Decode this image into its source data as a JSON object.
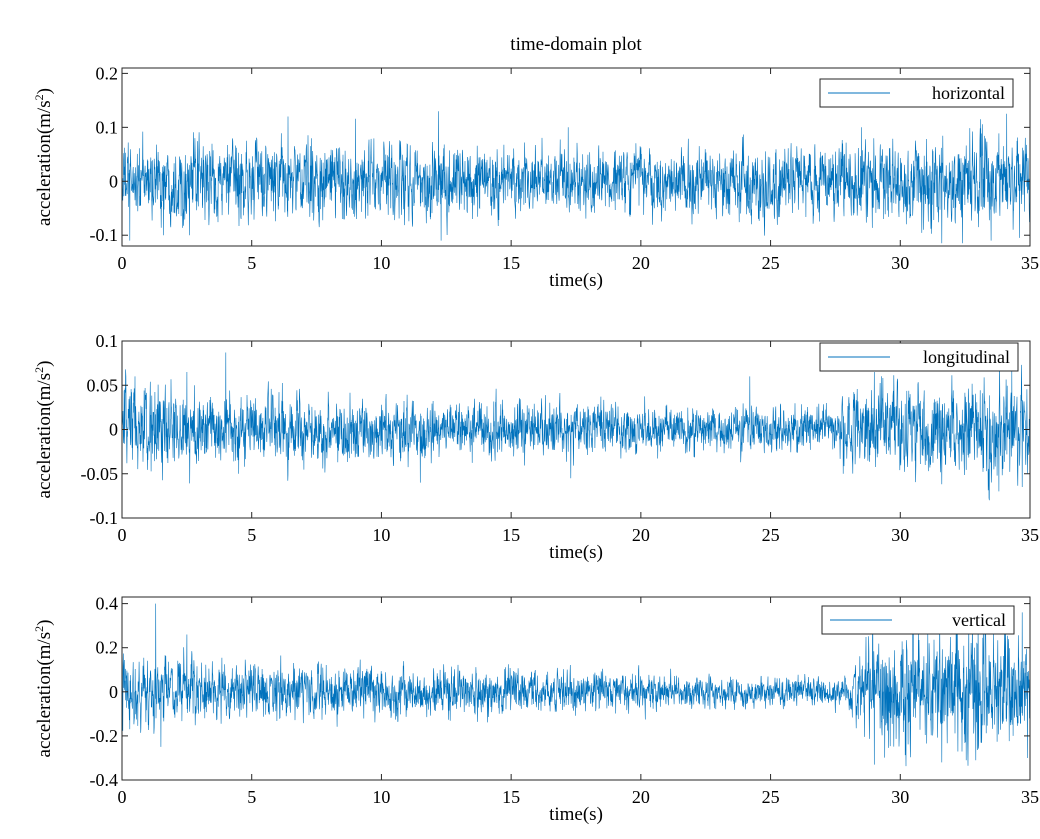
{
  "chart_data": {
    "title": "time-domain plot",
    "subplots": [
      {
        "type": "line",
        "xlabel": "time(s)",
        "ylabel": "acceleration(m/s",
        "ylabel_sup": "2",
        "ylabel_close": ")",
        "xlim": [
          0,
          35
        ],
        "ylim": [
          -0.12,
          0.21
        ],
        "xticks": [
          "0",
          "5",
          "10",
          "15",
          "20",
          "25",
          "30",
          "35"
        ],
        "yticks": [
          {
            "value": 0.2,
            "label": "0.2"
          },
          {
            "value": 0.1,
            "label": "0.1"
          },
          {
            "value": 0,
            "label": "0"
          },
          {
            "value": -0.1,
            "label": "-0.1"
          }
        ],
        "legend_position": "top-right",
        "series": [
          {
            "name": "horizontal",
            "color": "#0072bd",
            "signal": {
              "sample_rate_hz": 100,
              "envelope": [
                [
                  0,
                  0.052
                ],
                [
                  2,
                  0.055
                ],
                [
                  6,
                  0.058
                ],
                [
                  10,
                  0.055
                ],
                [
                  12,
                  0.058
                ],
                [
                  15,
                  0.048
                ],
                [
                  20,
                  0.05
                ],
                [
                  25,
                  0.05
                ],
                [
                  30,
                  0.058
                ],
                [
                  33,
                  0.063
                ],
                [
                  35,
                  0.06
                ]
              ]
            },
            "peaks": [
              {
                "x": 0.3,
                "y": -0.11
              },
              {
                "x": 1.6,
                "y": -0.1
              },
              {
                "x": 2.6,
                "y": -0.1
              },
              {
                "x": 6.4,
                "y": 0.12
              },
              {
                "x": 9,
                "y": 0.116
              },
              {
                "x": 12.2,
                "y": 0.13
              },
              {
                "x": 12.3,
                "y": -0.11
              },
              {
                "x": 17.2,
                "y": 0.1
              },
              {
                "x": 28.5,
                "y": 0.1
              },
              {
                "x": 31.6,
                "y": -0.115
              },
              {
                "x": 32.4,
                "y": -0.115
              },
              {
                "x": 33.1,
                "y": 0.115
              },
              {
                "x": 33.5,
                "y": -0.11
              },
              {
                "x": 34.1,
                "y": 0.125
              },
              {
                "x": 34.6,
                "y": -0.105
              }
            ]
          }
        ]
      },
      {
        "type": "line",
        "xlabel": "time(s)",
        "ylabel": "acceleration(m/s",
        "ylabel_sup": "2",
        "ylabel_close": ")",
        "xlim": [
          0,
          35
        ],
        "ylim": [
          -0.1,
          0.1
        ],
        "xticks": [
          "0",
          "5",
          "10",
          "15",
          "20",
          "25",
          "30",
          "35"
        ],
        "yticks": [
          {
            "value": 0.1,
            "label": "0.1"
          },
          {
            "value": 0.05,
            "label": "0.05"
          },
          {
            "value": 0,
            "label": "0"
          },
          {
            "value": -0.05,
            "label": "-0.05"
          },
          {
            "value": -0.1,
            "label": "-0.1"
          }
        ],
        "legend_position": "top-right",
        "series": [
          {
            "name": "longitudinal",
            "color": "#0072bd",
            "signal": {
              "sample_rate_hz": 100,
              "envelope": [
                [
                  0,
                  0.04
                ],
                [
                  2,
                  0.038
                ],
                [
                  4,
                  0.03
                ],
                [
                  6,
                  0.033
                ],
                [
                  9,
                  0.028
                ],
                [
                  11,
                  0.028
                ],
                [
                  12,
                  0.024
                ],
                [
                  15,
                  0.025
                ],
                [
                  20,
                  0.022
                ],
                [
                  25,
                  0.02
                ],
                [
                  27.5,
                  0.018
                ],
                [
                  28,
                  0.032
                ],
                [
                  30,
                  0.04
                ],
                [
                  33,
                  0.042
                ],
                [
                  35,
                  0.045
                ]
              ]
            },
            "peaks": [
              {
                "x": 0.5,
                "y": 0.06
              },
              {
                "x": 2.5,
                "y": 0.065
              },
              {
                "x": 4,
                "y": 0.087
              },
              {
                "x": 4.5,
                "y": -0.05
              },
              {
                "x": 11.5,
                "y": -0.06
              },
              {
                "x": 17.3,
                "y": -0.055
              },
              {
                "x": 24.2,
                "y": 0.06
              },
              {
                "x": 27.8,
                "y": -0.05
              },
              {
                "x": 29,
                "y": 0.065
              },
              {
                "x": 33.8,
                "y": -0.07
              },
              {
                "x": 34.7,
                "y": -0.065
              },
              {
                "x": 34.3,
                "y": 0.07
              }
            ]
          }
        ]
      },
      {
        "type": "line",
        "xlabel": "time(s)",
        "ylabel": "acceleration(m/s",
        "ylabel_sup": "2",
        "ylabel_close": ")",
        "xlim": [
          0,
          35
        ],
        "ylim": [
          -0.4,
          0.43
        ],
        "xticks": [
          "0",
          "5",
          "10",
          "15",
          "20",
          "25",
          "30",
          "35"
        ],
        "yticks": [
          {
            "value": 0.4,
            "label": "0.4"
          },
          {
            "value": 0.2,
            "label": "0.2"
          },
          {
            "value": 0,
            "label": "0"
          },
          {
            "value": -0.2,
            "label": "-0.2"
          },
          {
            "value": -0.4,
            "label": "-0.4"
          }
        ],
        "legend_position": "top-right",
        "series": [
          {
            "name": "vertical",
            "color": "#0072bd",
            "signal": {
              "sample_rate_hz": 100,
              "envelope": [
                [
                  0,
                  0.12
                ],
                [
                  1.5,
                  0.12
                ],
                [
                  4,
                  0.1
                ],
                [
                  10,
                  0.09
                ],
                [
                  15,
                  0.08
                ],
                [
                  20,
                  0.065
                ],
                [
                  25,
                  0.05
                ],
                [
                  28,
                  0.05
                ],
                [
                  28.6,
                  0.16
                ],
                [
                  30,
                  0.2
                ],
                [
                  33,
                  0.22
                ],
                [
                  35,
                  0.2
                ]
              ]
            },
            "peaks": [
              {
                "x": 1.3,
                "y": 0.4
              },
              {
                "x": 0.3,
                "y": -0.17
              },
              {
                "x": 1.5,
                "y": -0.25
              },
              {
                "x": 2.5,
                "y": 0.26
              },
              {
                "x": 29,
                "y": -0.33
              },
              {
                "x": 30.5,
                "y": 0.38
              },
              {
                "x": 31.6,
                "y": -0.32
              },
              {
                "x": 33,
                "y": 0.37
              },
              {
                "x": 34.7,
                "y": 0.36
              },
              {
                "x": 34.9,
                "y": -0.3
              }
            ]
          }
        ]
      }
    ]
  }
}
